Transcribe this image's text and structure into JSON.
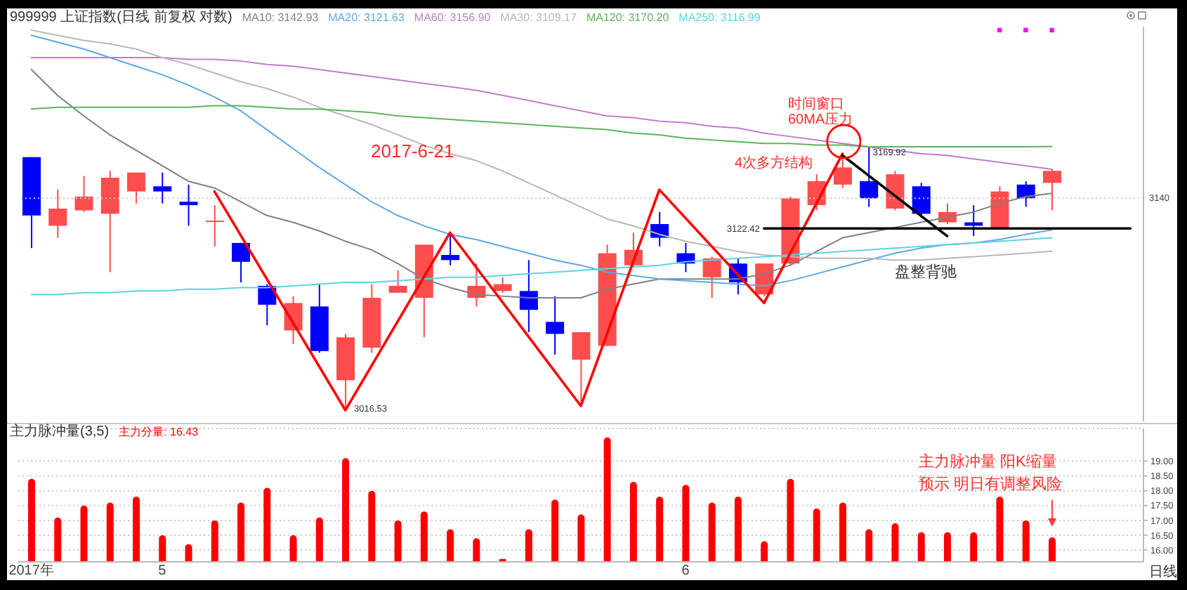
{
  "chart_data": [
    {
      "type": "candlestick",
      "title": "999999 上证指数(日线 前复权 对数)",
      "categories": [
        null,
        null,
        null,
        null,
        null,
        null,
        null,
        null,
        null,
        null,
        null,
        null,
        null,
        null,
        null,
        null,
        null,
        null,
        null,
        null,
        null,
        null,
        null,
        null,
        null,
        null,
        null,
        null,
        null,
        null,
        null,
        null,
        null,
        null,
        null,
        null,
        null,
        null,
        null,
        null,
        null,
        null,
        null
      ],
      "ohlc": [
        [
          3164,
          3164,
          3111,
          3130
        ],
        [
          3124,
          3145,
          3117,
          3134
        ],
        [
          3133,
          3153,
          3132,
          3141
        ],
        [
          3131,
          3156,
          3097,
          3152
        ],
        [
          3144,
          3155,
          3137,
          3155
        ],
        [
          3147,
          3155,
          3137,
          3144
        ],
        [
          3138,
          3148,
          3124,
          3136
        ],
        [
          3127,
          3136,
          3112,
          3127
        ],
        [
          3114,
          3114,
          3091,
          3103
        ],
        [
          3089,
          3090,
          3066,
          3078
        ],
        [
          3063,
          3083,
          3055,
          3079
        ],
        [
          3077,
          3090,
          3050,
          3051
        ],
        [
          3034,
          3061,
          3016.53,
          3059
        ],
        [
          3053,
          3090,
          3050,
          3082
        ],
        [
          3085,
          3098,
          3085,
          3089
        ],
        [
          3082,
          3113,
          3059,
          3113
        ],
        [
          3107,
          3120,
          3101,
          3104
        ],
        [
          3082,
          3102,
          3077,
          3089
        ],
        [
          3086,
          3094,
          3085,
          3090
        ],
        [
          3086,
          3104,
          3062,
          3075
        ],
        [
          3068,
          3083,
          3049,
          3061
        ],
        [
          3046,
          3062,
          3019,
          3062
        ],
        [
          3054,
          3113,
          3054,
          3108
        ],
        [
          3101,
          3120,
          3100,
          3110
        ],
        [
          3125,
          3132,
          3112,
          3117
        ],
        [
          3108,
          3114,
          3097,
          3102
        ],
        [
          3094,
          3106,
          3082,
          3105
        ],
        [
          3102,
          3105,
          3084,
          3091
        ],
        [
          3084,
          3102,
          3083,
          3102
        ],
        [
          3102,
          3141,
          3101,
          3140
        ],
        [
          3136,
          3154,
          3133,
          3150
        ],
        [
          3148,
          3166,
          3146,
          3158
        ],
        [
          3150,
          3169.92,
          3135,
          3140
        ],
        [
          3134,
          3156,
          3133,
          3154
        ],
        [
          3147,
          3149,
          3129,
          3131
        ],
        [
          3126,
          3137,
          3125,
          3132
        ],
        [
          3126,
          3136,
          3118,
          3124
        ],
        [
          3122,
          3147,
          3122,
          3144
        ],
        [
          3148,
          3150,
          3135,
          3140
        ],
        [
          3149,
          3157,
          3133,
          3156
        ],
        null,
        null,
        null
      ],
      "colors": [
        "#0000ff",
        "#ff4d4d",
        "#ff4d4d",
        "#ff4d4d",
        "#ff4d4d",
        "#0000ff",
        "#0000ff",
        "#ff4d4d",
        "#0000ff",
        "#0000ff",
        "#ff4d4d",
        "#0000ff",
        "#ff4d4d",
        "#ff4d4d",
        "#ff4d4d",
        "#ff4d4d",
        "#0000ff",
        "#ff4d4d",
        "#ff4d4d",
        "#0000ff",
        "#0000ff",
        "#ff4d4d",
        "#ff4d4d",
        "#ff4d4d",
        "#0000ff",
        "#0000ff",
        "#ff4d4d",
        "#0000ff",
        "#ff4d4d",
        "#ff4d4d",
        "#ff4d4d",
        "#ff4d4d",
        "#0000ff",
        "#ff4d4d",
        "#0000ff",
        "#ff4d4d",
        "#0000ff",
        "#ff4d4d",
        "#0000ff",
        "#ff4d4d",
        null,
        null,
        null
      ],
      "series": [
        {
          "name": "MA10: 3142.93",
          "type": "line",
          "color": "#808080",
          "values": [
            3215,
            3200,
            3188,
            3177,
            3168,
            3159,
            3150,
            3146,
            3138,
            3130,
            3126,
            3121,
            3115,
            3110,
            3102,
            3093,
            3088,
            3084,
            3083,
            3082,
            3082,
            3082,
            3087,
            3090,
            3093,
            3093,
            3093,
            3093,
            3096,
            3101,
            3109,
            3117,
            3120,
            3123,
            3126,
            3129,
            3132,
            3137,
            3141,
            3142.93,
            null,
            null,
            null
          ]
        },
        {
          "name": "MA20: 3121.63",
          "type": "line",
          "color": "#5ea8e6",
          "values": [
            3235,
            3231,
            3227,
            3222,
            3217,
            3212,
            3206,
            3199,
            3191,
            3180,
            3169,
            3158,
            3148,
            3138,
            3130,
            3124,
            3119,
            3116,
            3112,
            3108,
            3104,
            3101,
            3097,
            3095,
            3093,
            3092,
            3091,
            3090,
            3089,
            3092,
            3096,
            3100,
            3104,
            3108,
            3111,
            3113,
            3114,
            3116,
            3119,
            3121.63,
            null,
            null,
            null
          ]
        },
        {
          "name": "MA60: 3156.90",
          "type": "line",
          "color": "#c07ccc",
          "values": [
            3222,
            3222,
            3222,
            3222,
            3222,
            3222,
            3221,
            3221,
            3220,
            3218,
            3217,
            3215,
            3213,
            3211,
            3209,
            3207,
            3205,
            3203,
            3200,
            3197,
            3194,
            3191,
            3188,
            3187,
            3185,
            3184,
            3182,
            3181,
            3178,
            3176,
            3174,
            3172,
            3170,
            3168,
            3166,
            3165,
            3163,
            3161,
            3159,
            3156.9,
            null,
            null,
            null
          ]
        },
        {
          "name": "MA30: 3109.17",
          "type": "line",
          "color": "#b8b8b8",
          "values": [
            3238,
            3235,
            3232,
            3230,
            3227,
            3222,
            3218,
            3213,
            3208,
            3204,
            3199,
            3193,
            3188,
            3183,
            3177,
            3171,
            3166,
            3162,
            3156,
            3149,
            3142,
            3135,
            3128,
            3124,
            3119,
            3115,
            3112,
            3109,
            3107,
            3106,
            3105,
            3105,
            3105,
            3104,
            3104,
            3105,
            3106,
            3107,
            3108,
            3109.17,
            null,
            null,
            null
          ]
        },
        {
          "name": "MA120: 3170.20",
          "type": "line",
          "color": "#5fb35f",
          "values": [
            3192,
            3193,
            3193,
            3193,
            3193,
            3193,
            3193,
            3194,
            3194,
            3193,
            3192,
            3192,
            3191,
            3190,
            3188,
            3187,
            3186,
            3185,
            3184,
            3183,
            3182,
            3181,
            3180,
            3178,
            3177,
            3175,
            3174,
            3173,
            3172,
            3172,
            3171,
            3171,
            3170,
            3170,
            3170,
            3170,
            3170,
            3170,
            3170,
            3170.2,
            null,
            null,
            null
          ]
        },
        {
          "name": "MA250: 3116.99",
          "type": "line",
          "color": "#5fd3de",
          "values": [
            3084,
            3084,
            3085,
            3085,
            3086,
            3086,
            3087,
            3087,
            3088,
            3088,
            3089,
            3090,
            3091,
            3091,
            3092,
            3093,
            3094,
            3094,
            3095,
            3096,
            3097,
            3098,
            3099,
            3100,
            3101,
            3103,
            3104,
            3105,
            3106,
            3107,
            3108,
            3109,
            3110,
            3111,
            3112,
            3113,
            3114,
            3115,
            3116,
            3116.99,
            null,
            null,
            null
          ]
        },
        {
          "type": "line",
          "color": "#ff0000",
          "values": [
            null,
            null,
            null,
            null,
            null,
            null,
            null,
            3144,
            null,
            null,
            null,
            null,
            3016.53,
            null,
            null,
            null,
            3120,
            null,
            null,
            null,
            null,
            3019,
            null,
            null,
            3145,
            null,
            null,
            null,
            3079,
            null,
            null,
            3166,
            null,
            null,
            null,
            null,
            null,
            null,
            null,
            null,
            null,
            null,
            null
          ]
        },
        {
          "type": "line",
          "color": "#000000",
          "values": [
            null,
            null,
            null,
            null,
            null,
            null,
            null,
            null,
            null,
            null,
            null,
            null,
            null,
            null,
            null,
            null,
            null,
            null,
            null,
            null,
            null,
            null,
            null,
            null,
            null,
            null,
            null,
            null,
            null,
            null,
            null,
            3165,
            null,
            null,
            null,
            3118,
            null,
            null,
            null,
            null,
            null,
            null,
            null
          ]
        },
        {
          "type": "line",
          "color": "#000000",
          "values": [
            null,
            null,
            null,
            null,
            null,
            null,
            null,
            null,
            null,
            null,
            null,
            null,
            null,
            null,
            null,
            null,
            null,
            null,
            null,
            null,
            null,
            null,
            null,
            null,
            null,
            null,
            null,
            null,
            3122.42,
            3122.42,
            3122.42,
            3122.42,
            3122.42,
            3122.42,
            3122.42,
            3122.42,
            3122.42,
            3122.42,
            3122.42,
            3122.42,
            3122.42,
            3122.42,
            3122.42
          ],
          "value_labels": [
            null,
            null,
            null,
            null,
            null,
            null,
            null,
            null,
            null,
            null,
            null,
            null,
            null,
            null,
            null,
            null,
            null,
            null,
            null,
            null,
            null,
            null,
            null,
            null,
            null,
            null,
            null,
            null,
            "3122.42",
            null,
            null,
            null,
            null,
            null,
            null,
            null,
            null,
            null,
            null,
            null,
            null,
            null,
            null
          ]
        },
        {
          "type": "scatter",
          "color": "#ff00ff",
          "marker": "square",
          "values": [
            null,
            null,
            null,
            null,
            null,
            null,
            null,
            null,
            null,
            null,
            null,
            null,
            null,
            null,
            null,
            null,
            null,
            null,
            null,
            null,
            null,
            null,
            null,
            null,
            null,
            null,
            null,
            null,
            null,
            null,
            null,
            null,
            null,
            null,
            null,
            null,
            null,
            3238,
            3238,
            3238,
            null,
            null,
            null
          ]
        }
      ],
      "ylim": [
        3010,
        3240
      ],
      "legend": "top left",
      "tick_labels": false,
      "ref_lines": [
        {
          "axis": "y",
          "value": 3140,
          "color": "#c8c8c8",
          "line_style": "dotted"
        }
      ],
      "annotations": [
        "2017-6-21",
        "时间窗口",
        "60MA压力",
        "4次多方结构",
        "盘整背驰",
        "3016.53",
        "3140",
        {
          "text": "3169.92",
          "y": 3169.92
        }
      ]
    },
    {
      "type": "bar",
      "title": "主力脉冲量(3,5)",
      "categories": [
        "2017年",
        null,
        null,
        null,
        null,
        "5",
        null,
        null,
        null,
        null,
        null,
        null,
        null,
        null,
        null,
        null,
        null,
        null,
        null,
        null,
        null,
        null,
        null,
        null,
        null,
        "6",
        null,
        null,
        null,
        null,
        null,
        null,
        null,
        null,
        null,
        null,
        null,
        null,
        null,
        null,
        null,
        null,
        null
      ],
      "series": [
        {
          "name": "主力分量: 16.43",
          "color": "#ff0000",
          "values": [
            18.4,
            17.1,
            17.5,
            17.6,
            17.8,
            16.5,
            16.2,
            17.0,
            17.6,
            18.1,
            16.5,
            17.1,
            19.1,
            18.0,
            17.0,
            17.3,
            16.7,
            16.4,
            15.7,
            16.7,
            17.7,
            17.2,
            19.8,
            18.3,
            17.8,
            18.2,
            17.6,
            17.8,
            16.3,
            18.4,
            17.4,
            17.6,
            16.7,
            16.9,
            16.6,
            16.6,
            16.6,
            17.8,
            17.0,
            16.43,
            null,
            null,
            null
          ]
        }
      ],
      "ylim": [
        15.6,
        20.1
      ],
      "yticks": [
        {
          "value": 16,
          "label": "16.00"
        },
        {
          "value": 16.5,
          "label": "16.50"
        },
        {
          "value": 17,
          "label": "17.00"
        },
        {
          "value": 17.5,
          "label": "17.50"
        },
        {
          "value": 18,
          "label": "18.00"
        },
        {
          "value": 18.5,
          "label": "18.50"
        },
        {
          "value": 19,
          "label": "19.00"
        }
      ],
      "grid": "y",
      "legend": "top left",
      "annotations": [
        "主力脉冲量 阳K缩量",
        "预示 明日有调整风险",
        "日线"
      ]
    }
  ]
}
